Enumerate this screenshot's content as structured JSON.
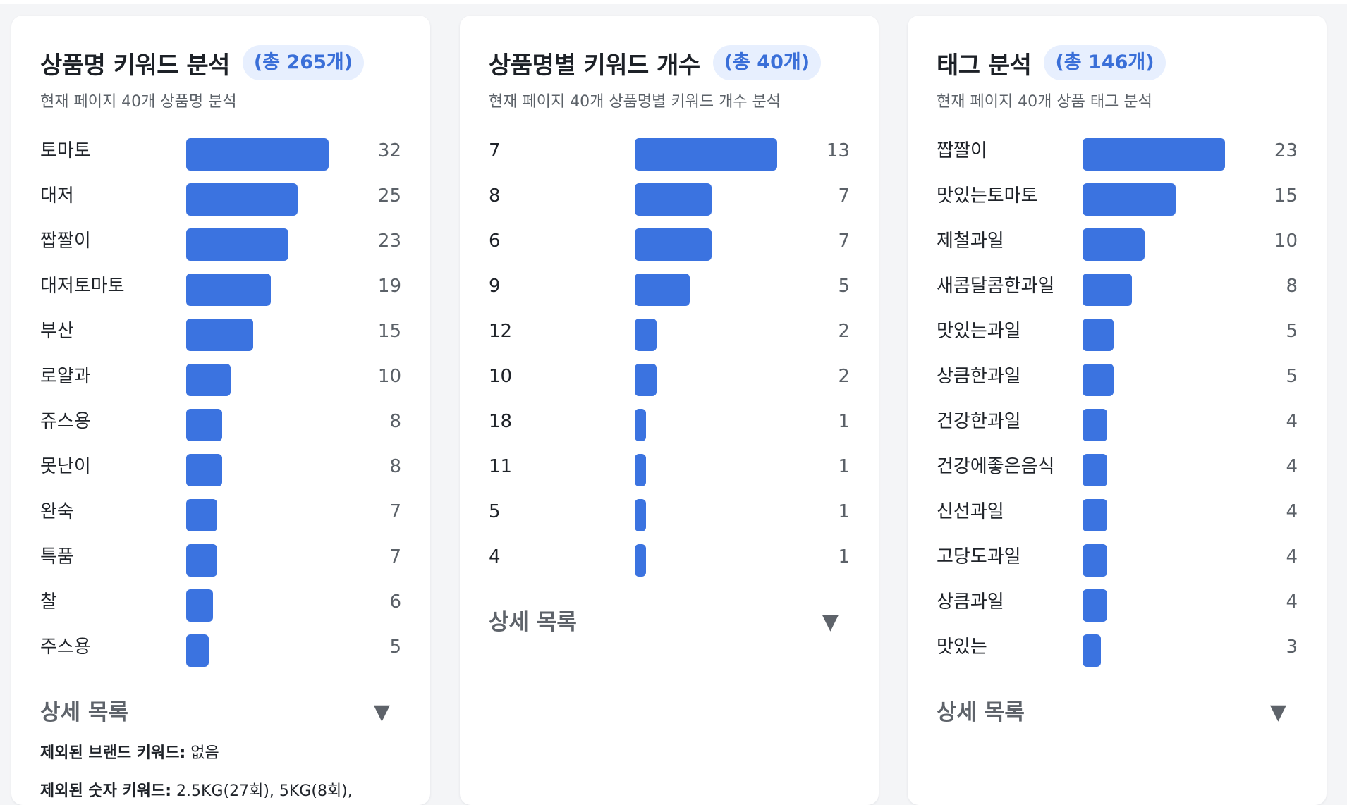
{
  "cards": [
    {
      "title": "상품명 키워드 분석",
      "badge": "(총 265개)",
      "subtitle": "현재 페이지 40개 상품명 분석",
      "max": 32,
      "rows": [
        {
          "label": "토마토",
          "value": 32
        },
        {
          "label": "대저",
          "value": 25
        },
        {
          "label": "짭짤이",
          "value": 23
        },
        {
          "label": "대저토마토",
          "value": 19
        },
        {
          "label": "부산",
          "value": 15
        },
        {
          "label": "로얄과",
          "value": 10
        },
        {
          "label": "쥬스용",
          "value": 8
        },
        {
          "label": "못난이",
          "value": 8
        },
        {
          "label": "완숙",
          "value": 7
        },
        {
          "label": "특품",
          "value": 7
        },
        {
          "label": "찰",
          "value": 6
        },
        {
          "label": "주스용",
          "value": 5
        }
      ],
      "details_label": "상세 목록",
      "details_arrow": "▼",
      "notes": [
        {
          "key": "제외된 브랜드 키워드:",
          "value": " 없음"
        },
        {
          "key": "제외된 숫자 키워드:",
          "value": " 2.5KG(27회), 5KG(8회),"
        }
      ]
    },
    {
      "title": "상품명별 키워드 개수",
      "badge": "(총 40개)",
      "subtitle": "현재 페이지 40개 상품명별 키워드 개수 분석",
      "max": 13,
      "rows": [
        {
          "label": "7",
          "value": 13
        },
        {
          "label": "8",
          "value": 7
        },
        {
          "label": "6",
          "value": 7
        },
        {
          "label": "9",
          "value": 5
        },
        {
          "label": "12",
          "value": 2
        },
        {
          "label": "10",
          "value": 2
        },
        {
          "label": "18",
          "value": 1
        },
        {
          "label": "11",
          "value": 1
        },
        {
          "label": "5",
          "value": 1
        },
        {
          "label": "4",
          "value": 1
        }
      ],
      "details_label": "상세 목록",
      "details_arrow": "▼",
      "notes": []
    },
    {
      "title": "태그 분석",
      "badge": "(총 146개)",
      "subtitle": "현재 페이지 40개 상품 태그 분석",
      "max": 23,
      "rows": [
        {
          "label": "짭짤이",
          "value": 23
        },
        {
          "label": "맛있는토마토",
          "value": 15
        },
        {
          "label": "제철과일",
          "value": 10
        },
        {
          "label": "새콤달콤한과일",
          "value": 8
        },
        {
          "label": "맛있는과일",
          "value": 5
        },
        {
          "label": "상큼한과일",
          "value": 5
        },
        {
          "label": "건강한과일",
          "value": 4
        },
        {
          "label": "건강에좋은음식",
          "value": 4
        },
        {
          "label": "신선과일",
          "value": 4
        },
        {
          "label": "고당도과일",
          "value": 4
        },
        {
          "label": "상큼과일",
          "value": 4
        },
        {
          "label": "맛있는",
          "value": 3
        }
      ],
      "details_label": "상세 목록",
      "details_arrow": "▼",
      "notes": []
    }
  ],
  "colors": {
    "bar": "#3b73e0",
    "badge_bg": "#e7effe",
    "badge_text": "#3a6fd8"
  }
}
